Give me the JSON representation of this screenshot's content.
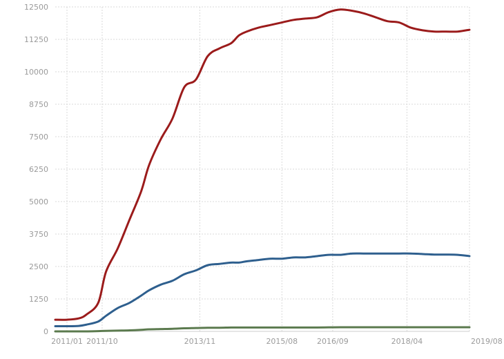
{
  "chart_data": {
    "type": "line",
    "title": "",
    "xlabel": "",
    "ylabel": "",
    "grid": true,
    "legend": "none",
    "x_start": "2010/10",
    "x_end": "2019/08",
    "xlim": [
      "2010/10",
      "2019/08"
    ],
    "ylim": [
      0,
      12500
    ],
    "y_ticks": [
      "0",
      "1250",
      "2500",
      "3750",
      "5000",
      "6250",
      "7500",
      "8750",
      "10000",
      "11250",
      "12500"
    ],
    "x_ticks": [
      "2011/01",
      "2011/10",
      "2013/11",
      "2015/08",
      "2016/09",
      "2018/04",
      "2019/08"
    ],
    "x": [
      "2010/10",
      "2011/01",
      "2011/04",
      "2011/06",
      "2011/09",
      "2011/11",
      "2012/02",
      "2012/05",
      "2012/08",
      "2012/10",
      "2013/01",
      "2013/04",
      "2013/07",
      "2013/10",
      "2014/01",
      "2014/04",
      "2014/07",
      "2014/09",
      "2014/11",
      "2015/02",
      "2015/05",
      "2015/08",
      "2015/11",
      "2016/02",
      "2016/05",
      "2016/08",
      "2016/11",
      "2017/02",
      "2017/05",
      "2017/08",
      "2017/11",
      "2018/02",
      "2018/05",
      "2018/08",
      "2018/11",
      "2019/02",
      "2019/05",
      "2019/08"
    ],
    "series": [
      {
        "color": "#9b1b1b",
        "values": [
          450,
          450,
          500,
          650,
          1100,
          2300,
          3200,
          4300,
          5400,
          6400,
          7400,
          8200,
          9400,
          9700,
          10600,
          10900,
          11100,
          11400,
          11550,
          11700,
          11800,
          11900,
          12000,
          12050,
          12100,
          12300,
          12400,
          12350,
          12250,
          12100,
          11950,
          11900,
          11700,
          11600,
          11550,
          11550,
          11550,
          11620
        ]
      },
      {
        "color": "#2e5f8e",
        "values": [
          200,
          200,
          210,
          260,
          380,
          600,
          900,
          1100,
          1380,
          1580,
          1800,
          1950,
          2200,
          2350,
          2550,
          2600,
          2650,
          2650,
          2700,
          2750,
          2800,
          2800,
          2850,
          2850,
          2900,
          2950,
          2950,
          3000,
          3000,
          3000,
          3000,
          3000,
          3000,
          2980,
          2960,
          2960,
          2950,
          2900
        ]
      },
      {
        "color": "#5b7a4e",
        "values": [
          0,
          0,
          0,
          0,
          10,
          20,
          30,
          40,
          60,
          80,
          90,
          100,
          120,
          130,
          140,
          140,
          150,
          150,
          150,
          150,
          150,
          150,
          150,
          150,
          150,
          155,
          160,
          160,
          160,
          160,
          160,
          160,
          160,
          160,
          160,
          160,
          160,
          160
        ]
      }
    ]
  }
}
